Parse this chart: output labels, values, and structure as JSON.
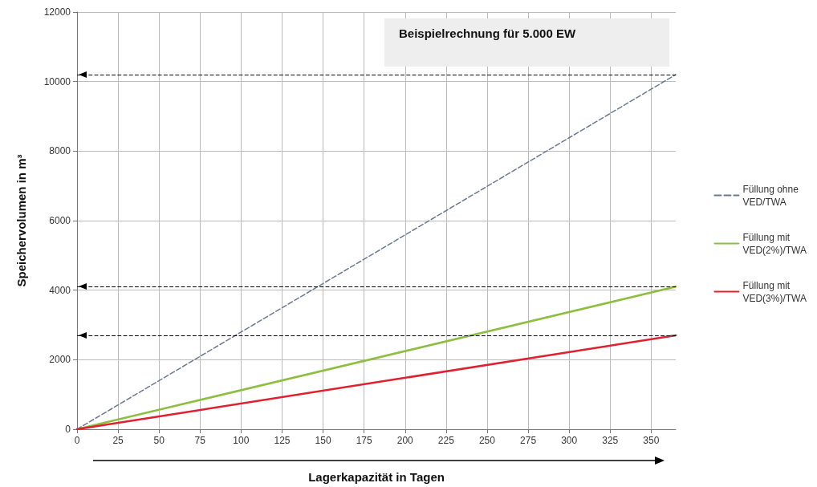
{
  "chart_data": {
    "type": "line",
    "xlabel": "Lagerkapazität in Tagen",
    "ylabel": "Speichervolumen in m³",
    "annotations": [
      "Beispielrechnung für 5.000 EW"
    ],
    "x": [
      0,
      365
    ],
    "series": [
      {
        "name": "Füllung ohne\nVED/TWA",
        "color": "#6b7894",
        "values": [
          0,
          10200
        ],
        "line_style": "dashed"
      },
      {
        "name": "Füllung mit\nVED(2%)/TWA",
        "color": "#8cbf3f",
        "values": [
          0,
          4100
        ],
        "line_style": "solid"
      },
      {
        "name": "Füllung mit\nVED(3%)/TWA",
        "color": "#e0202e",
        "values": [
          0,
          2700
        ],
        "line_style": "solid"
      }
    ],
    "xlim": [
      0,
      365
    ],
    "xticks": [
      0,
      25,
      50,
      75,
      100,
      125,
      150,
      175,
      200,
      225,
      250,
      275,
      300,
      325,
      350
    ],
    "ylim": [
      0,
      12000
    ],
    "yticks": [
      0,
      2000,
      4000,
      6000,
      8000,
      10000,
      12000
    ],
    "ref_lines": [
      {
        "axis": "y",
        "value": 10200,
        "color": "#000000",
        "line_style": "dashed"
      },
      {
        "axis": "y",
        "value": 4100,
        "color": "#000000",
        "line_style": "dashed"
      },
      {
        "axis": "y",
        "value": 2700,
        "color": "#000000",
        "line_style": "dashed"
      }
    ],
    "grid": true,
    "legend": "right",
    "marker": "none"
  }
}
